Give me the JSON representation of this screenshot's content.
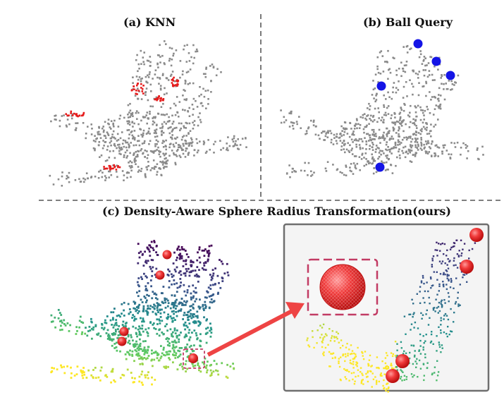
{
  "panels": {
    "a": {
      "label": "(a) KNN"
    },
    "b": {
      "label": "(b) Ball Query"
    },
    "c": {
      "label": "(c) Density-Aware Sphere Radius Transformation(ours)"
    }
  },
  "colors": {
    "point": "#8a8a8a",
    "knn_group": "#e51b1b",
    "ball_query_center": "#1414e6",
    "sphere": "#e01818",
    "arrow": "#ee4444",
    "highlight_box": "#c23b64",
    "inset_border": "#6f6f6f",
    "inset_bg": "#f4f4f4",
    "divider": "#333333"
  }
}
